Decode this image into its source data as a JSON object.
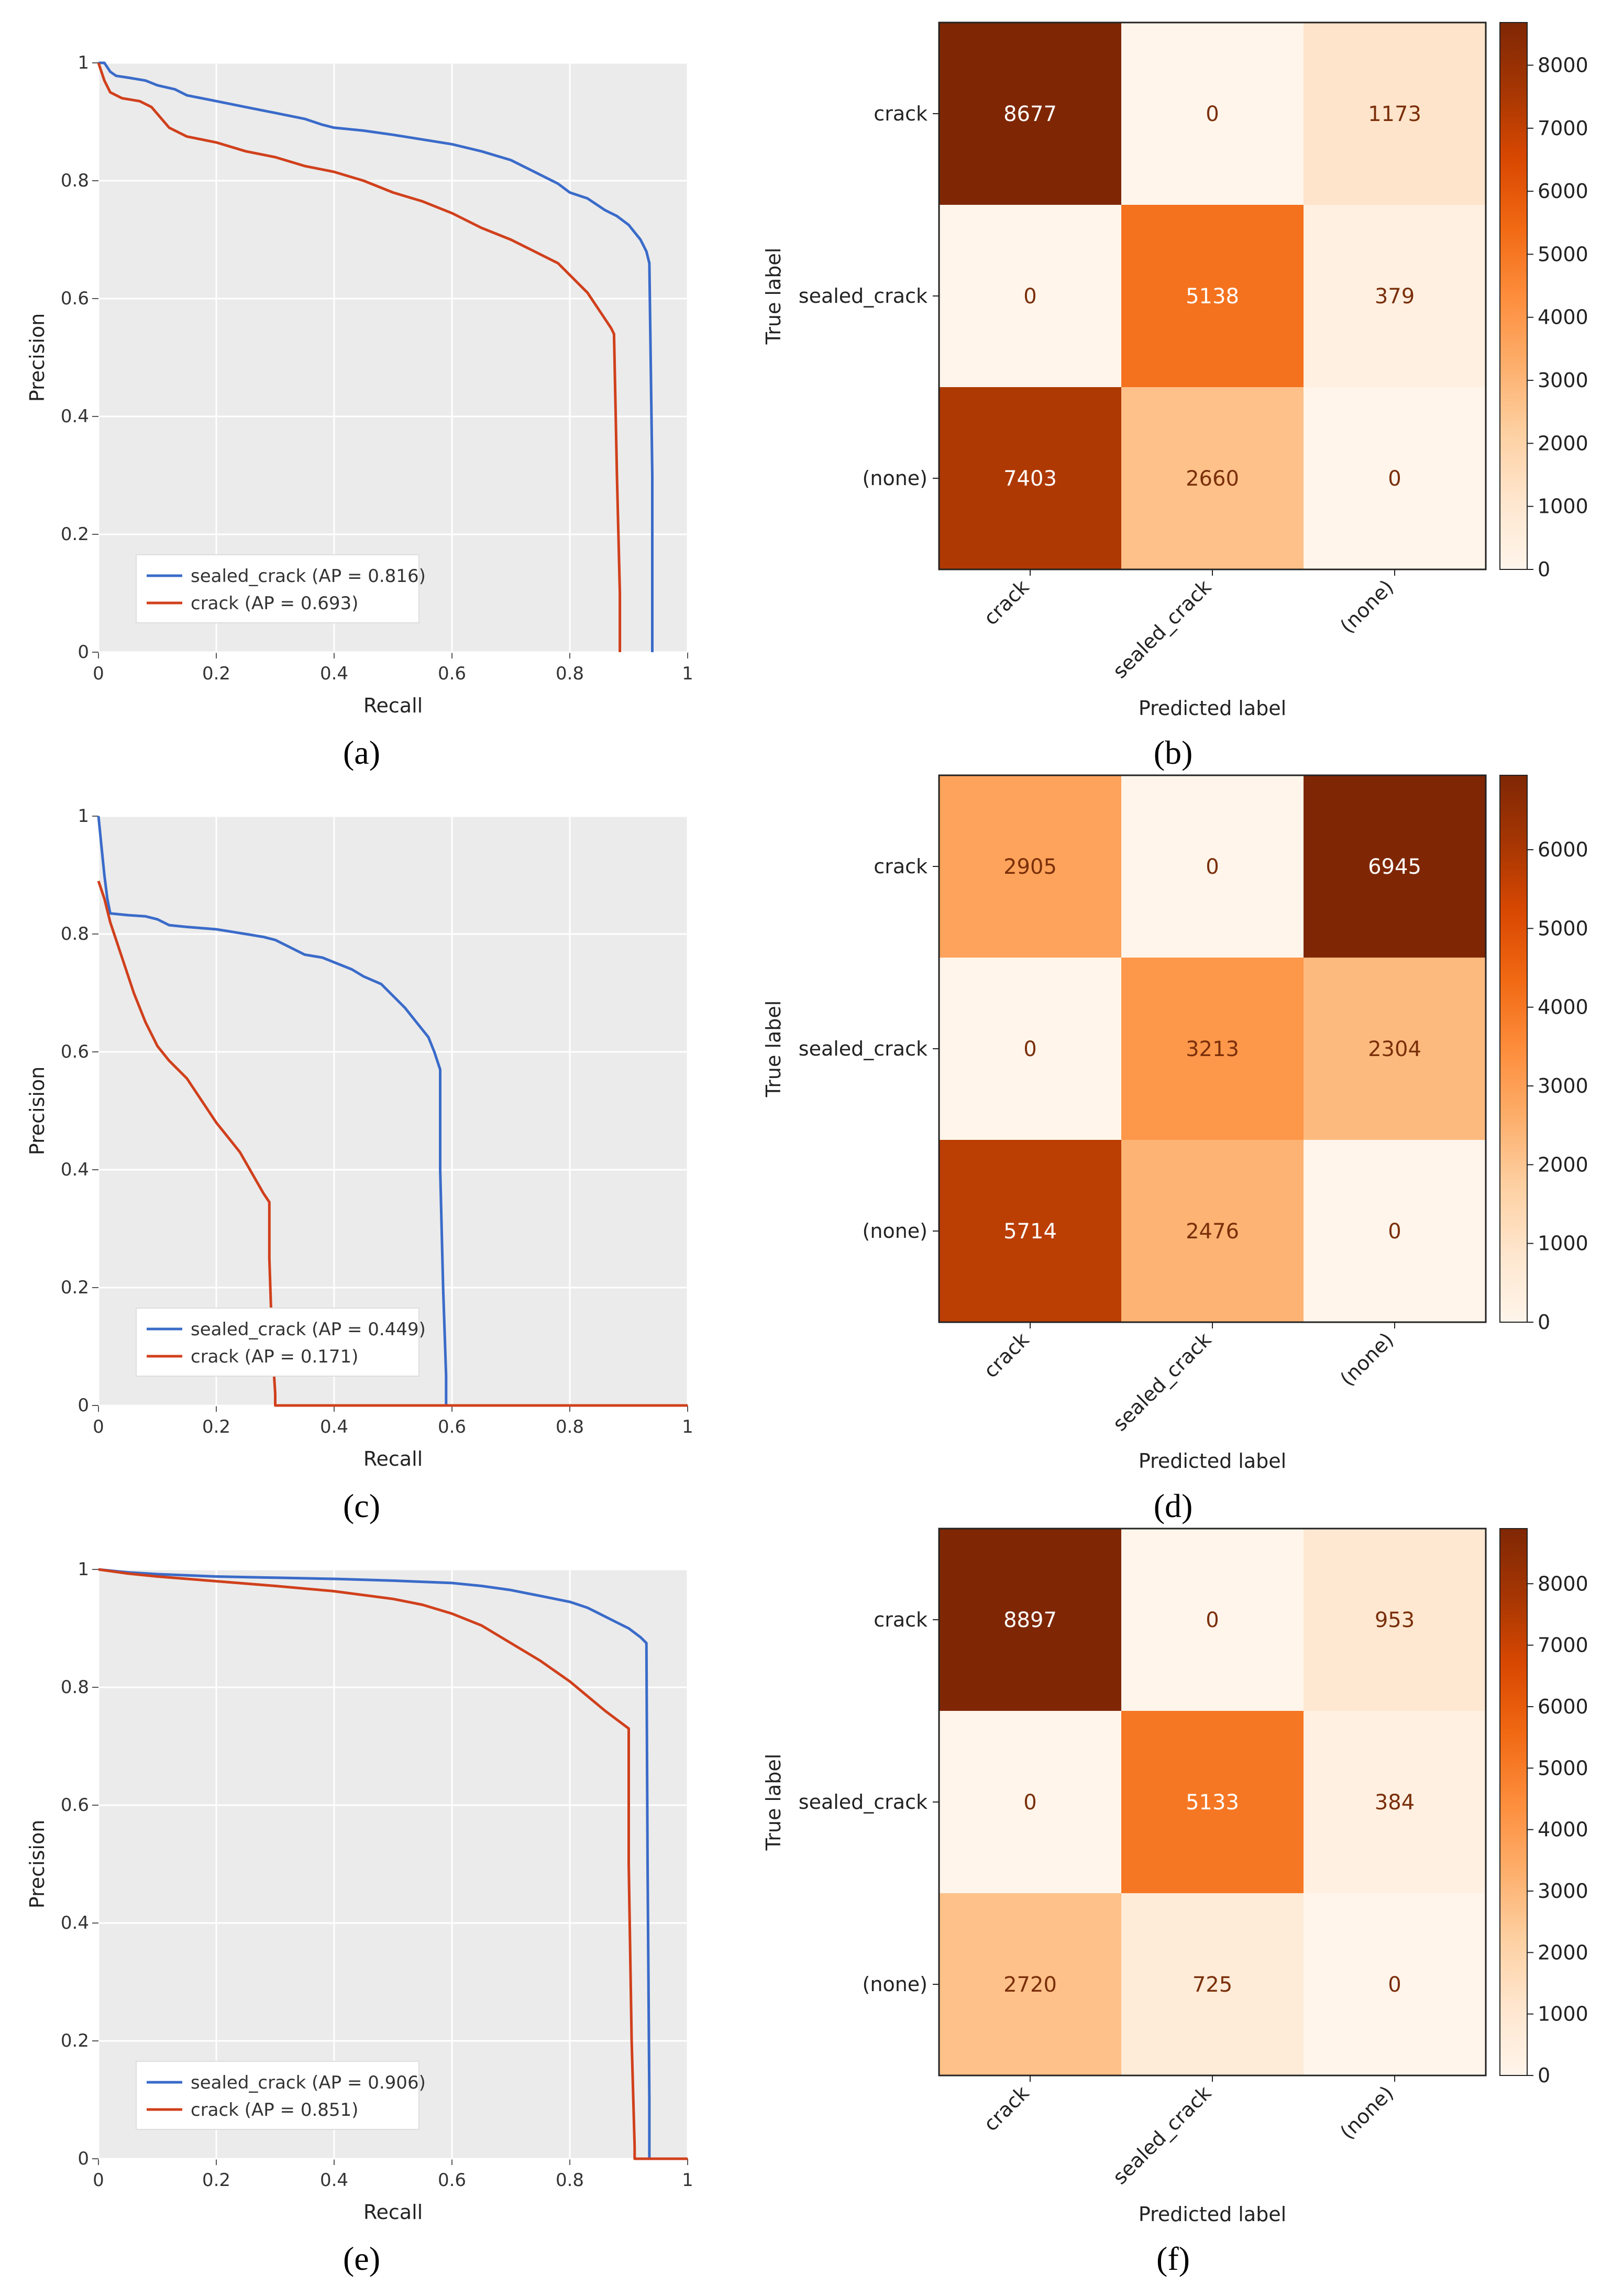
{
  "chart_data": [
    {
      "id": "a",
      "type": "line",
      "panel_label": "a",
      "xlabel": "Recall",
      "ylabel": "Precision",
      "xlim": [
        0,
        1
      ],
      "ylim": [
        0,
        1
      ],
      "xticks": [
        "0",
        "0.2",
        "0.4",
        "0.6",
        "0.8",
        "1"
      ],
      "yticks": [
        "0",
        "0.2",
        "0.4",
        "0.6",
        "0.8",
        "1"
      ],
      "grid": true,
      "legend_position": "lower-left",
      "series": [
        {
          "name": "sealed_crack (AP = 0.816)",
          "color": "#3a6bc9",
          "x": [
            0,
            0.01,
            0.02,
            0.03,
            0.05,
            0.08,
            0.1,
            0.13,
            0.15,
            0.2,
            0.25,
            0.3,
            0.35,
            0.38,
            0.4,
            0.45,
            0.5,
            0.55,
            0.6,
            0.65,
            0.7,
            0.73,
            0.75,
            0.78,
            0.8,
            0.83,
            0.86,
            0.88,
            0.9,
            0.92,
            0.93,
            0.935,
            0.94,
            0.94
          ],
          "y": [
            1,
            1,
            0.985,
            0.978,
            0.975,
            0.97,
            0.962,
            0.955,
            0.945,
            0.935,
            0.925,
            0.915,
            0.905,
            0.895,
            0.89,
            0.885,
            0.878,
            0.87,
            0.862,
            0.85,
            0.835,
            0.82,
            0.81,
            0.795,
            0.78,
            0.77,
            0.75,
            0.74,
            0.725,
            0.7,
            0.68,
            0.66,
            0.3,
            0
          ]
        },
        {
          "name": "crack (AP = 0.693)",
          "color": "#d0401c",
          "x": [
            0,
            0.01,
            0.02,
            0.04,
            0.07,
            0.09,
            0.12,
            0.15,
            0.2,
            0.25,
            0.3,
            0.35,
            0.4,
            0.45,
            0.5,
            0.55,
            0.6,
            0.65,
            0.7,
            0.75,
            0.78,
            0.8,
            0.83,
            0.85,
            0.87,
            0.875,
            0.88,
            0.885,
            0.885
          ],
          "y": [
            1,
            0.97,
            0.95,
            0.94,
            0.935,
            0.925,
            0.89,
            0.875,
            0.865,
            0.85,
            0.84,
            0.825,
            0.815,
            0.8,
            0.78,
            0.765,
            0.745,
            0.72,
            0.7,
            0.675,
            0.66,
            0.64,
            0.61,
            0.58,
            0.55,
            0.54,
            0.3,
            0.1,
            0
          ]
        }
      ]
    },
    {
      "id": "b",
      "type": "heatmap",
      "panel_label": "b",
      "xlabel": "Predicted label",
      "ylabel": "True label",
      "row_labels": [
        "crack",
        "sealed_crack",
        "(none)"
      ],
      "col_labels": [
        "crack",
        "sealed_crack",
        "(none)"
      ],
      "values": [
        [
          8677,
          0,
          1173
        ],
        [
          0,
          5138,
          379
        ],
        [
          7403,
          2660,
          0
        ]
      ],
      "vmax": 8677,
      "colorbar_ticks": [
        "0",
        "1000",
        "2000",
        "3000",
        "4000",
        "5000",
        "6000",
        "7000",
        "8000"
      ]
    },
    {
      "id": "c",
      "type": "line",
      "panel_label": "c",
      "xlabel": "Recall",
      "ylabel": "Precision",
      "xlim": [
        0,
        1
      ],
      "ylim": [
        0,
        1
      ],
      "xticks": [
        "0",
        "0.2",
        "0.4",
        "0.6",
        "0.8",
        "1"
      ],
      "yticks": [
        "0",
        "0.2",
        "0.4",
        "0.6",
        "0.8",
        "1"
      ],
      "grid": true,
      "legend_position": "lower-left",
      "series": [
        {
          "name": "sealed_crack (AP = 0.449)",
          "color": "#3a6bc9",
          "x": [
            0,
            0.005,
            0.01,
            0.015,
            0.02,
            0.05,
            0.08,
            0.1,
            0.12,
            0.15,
            0.2,
            0.25,
            0.28,
            0.3,
            0.33,
            0.35,
            0.38,
            0.4,
            0.43,
            0.45,
            0.48,
            0.5,
            0.52,
            0.54,
            0.56,
            0.57,
            0.58,
            0.58,
            0.585,
            0.59,
            0.59,
            1.0
          ],
          "y": [
            1,
            0.95,
            0.9,
            0.86,
            0.835,
            0.832,
            0.83,
            0.825,
            0.815,
            0.812,
            0.808,
            0.8,
            0.795,
            0.79,
            0.775,
            0.765,
            0.76,
            0.752,
            0.74,
            0.728,
            0.715,
            0.695,
            0.675,
            0.65,
            0.625,
            0.6,
            0.57,
            0.4,
            0.2,
            0.05,
            0,
            0
          ]
        },
        {
          "name": "crack (AP = 0.171)",
          "color": "#d0401c",
          "x": [
            0,
            0.01,
            0.02,
            0.04,
            0.06,
            0.08,
            0.09,
            0.1,
            0.12,
            0.15,
            0.18,
            0.2,
            0.22,
            0.24,
            0.26,
            0.28,
            0.29,
            0.29,
            0.295,
            0.3,
            0.3,
            1.0
          ],
          "y": [
            0.89,
            0.86,
            0.82,
            0.76,
            0.7,
            0.65,
            0.63,
            0.61,
            0.585,
            0.555,
            0.51,
            0.48,
            0.455,
            0.43,
            0.395,
            0.36,
            0.345,
            0.25,
            0.1,
            0.02,
            0,
            0
          ]
        }
      ]
    },
    {
      "id": "d",
      "type": "heatmap",
      "panel_label": "d",
      "xlabel": "Predicted label",
      "ylabel": "True label",
      "row_labels": [
        "crack",
        "sealed_crack",
        "(none)"
      ],
      "col_labels": [
        "crack",
        "sealed_crack",
        "(none)"
      ],
      "values": [
        [
          2905,
          0,
          6945
        ],
        [
          0,
          3213,
          2304
        ],
        [
          5714,
          2476,
          0
        ]
      ],
      "vmax": 6945,
      "colorbar_ticks": [
        "0",
        "1000",
        "2000",
        "3000",
        "4000",
        "5000",
        "6000"
      ]
    },
    {
      "id": "e",
      "type": "line",
      "panel_label": "e",
      "xlabel": "Recall",
      "ylabel": "Precision",
      "xlim": [
        0,
        1
      ],
      "ylim": [
        0,
        1
      ],
      "xticks": [
        "0",
        "0.2",
        "0.4",
        "0.6",
        "0.8",
        "1"
      ],
      "yticks": [
        "0",
        "0.2",
        "0.4",
        "0.6",
        "0.8",
        "1"
      ],
      "grid": true,
      "legend_position": "lower-left",
      "series": [
        {
          "name": "sealed_crack (AP = 0.906)",
          "color": "#3a6bc9",
          "x": [
            0,
            0.05,
            0.1,
            0.2,
            0.3,
            0.4,
            0.5,
            0.6,
            0.65,
            0.7,
            0.75,
            0.8,
            0.83,
            0.86,
            0.88,
            0.9,
            0.92,
            0.93,
            0.932,
            0.935,
            0.935,
            1.0
          ],
          "y": [
            1,
            0.995,
            0.992,
            0.988,
            0.986,
            0.984,
            0.981,
            0.977,
            0.972,
            0.965,
            0.955,
            0.945,
            0.935,
            0.92,
            0.91,
            0.9,
            0.885,
            0.875,
            0.5,
            0.1,
            0,
            0
          ]
        },
        {
          "name": "crack (AP = 0.851)",
          "color": "#d0401c",
          "x": [
            0,
            0.05,
            0.1,
            0.2,
            0.3,
            0.4,
            0.5,
            0.55,
            0.6,
            0.65,
            0.7,
            0.75,
            0.8,
            0.83,
            0.86,
            0.88,
            0.9,
            0.9,
            0.905,
            0.91,
            0.91,
            1.0
          ],
          "y": [
            1,
            0.993,
            0.988,
            0.98,
            0.972,
            0.963,
            0.95,
            0.94,
            0.925,
            0.905,
            0.875,
            0.845,
            0.81,
            0.785,
            0.76,
            0.745,
            0.73,
            0.5,
            0.2,
            0.02,
            0,
            0
          ]
        }
      ]
    },
    {
      "id": "f",
      "type": "heatmap",
      "panel_label": "f",
      "xlabel": "Predicted label",
      "ylabel": "True label",
      "row_labels": [
        "crack",
        "sealed_crack",
        "(none)"
      ],
      "col_labels": [
        "crack",
        "sealed_crack",
        "(none)"
      ],
      "values": [
        [
          8897,
          0,
          953
        ],
        [
          0,
          5133,
          384
        ],
        [
          2720,
          725,
          0
        ]
      ],
      "vmax": 8897,
      "colorbar_ticks": [
        "0",
        "1000",
        "2000",
        "3000",
        "4000",
        "5000",
        "6000",
        "7000",
        "8000"
      ]
    }
  ]
}
